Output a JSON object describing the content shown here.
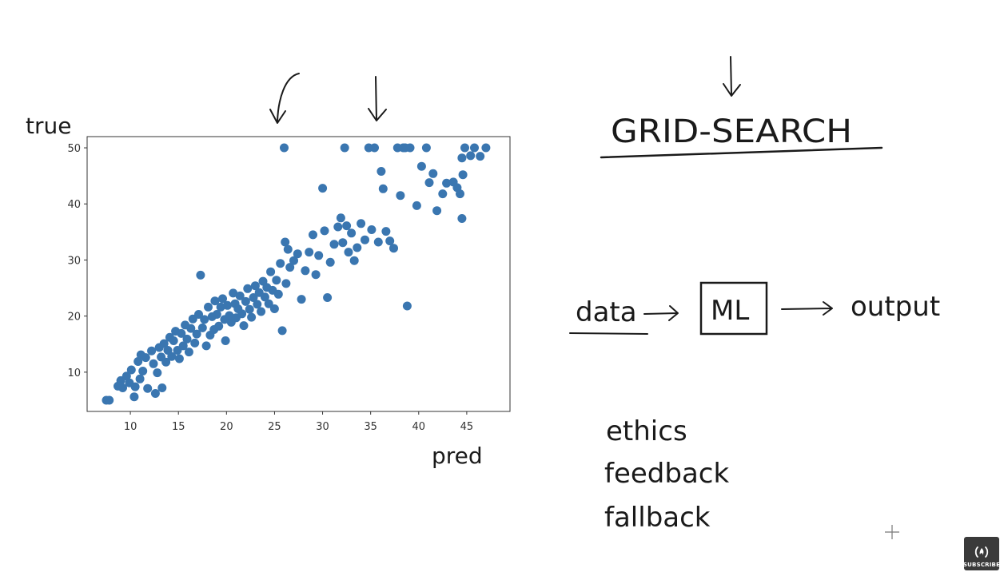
{
  "chart_data": {
    "type": "scatter",
    "title": "",
    "xlabel": "pred",
    "ylabel": "true",
    "xlim": [
      5.5,
      49.5
    ],
    "ylim": [
      3,
      52
    ],
    "xticks": [
      10,
      15,
      20,
      25,
      30,
      35,
      40,
      45
    ],
    "yticks": [
      10,
      20,
      30,
      40,
      50
    ],
    "grid": false,
    "marker_color": "#3a76b0",
    "points": [
      [
        7.5,
        5
      ],
      [
        7.8,
        5
      ],
      [
        8.7,
        7.5
      ],
      [
        9.0,
        8.5
      ],
      [
        9.2,
        7.2
      ],
      [
        9.6,
        9.3
      ],
      [
        9.9,
        8.1
      ],
      [
        10.1,
        10.4
      ],
      [
        10.4,
        5.6
      ],
      [
        10.5,
        7.4
      ],
      [
        10.8,
        11.9
      ],
      [
        11.0,
        8.8
      ],
      [
        11.1,
        13.1
      ],
      [
        11.3,
        10.2
      ],
      [
        11.6,
        12.6
      ],
      [
        11.8,
        7.1
      ],
      [
        12.2,
        13.8
      ],
      [
        12.4,
        11.5
      ],
      [
        12.6,
        6.2
      ],
      [
        12.8,
        9.9
      ],
      [
        13.0,
        14.4
      ],
      [
        13.2,
        12.7
      ],
      [
        13.3,
        7.2
      ],
      [
        13.5,
        15.1
      ],
      [
        13.7,
        11.8
      ],
      [
        13.9,
        13.9
      ],
      [
        14.1,
        16.2
      ],
      [
        14.3,
        12.8
      ],
      [
        14.5,
        15.6
      ],
      [
        14.7,
        17.3
      ],
      [
        14.9,
        13.9
      ],
      [
        15.1,
        12.4
      ],
      [
        15.3,
        16.9
      ],
      [
        15.5,
        14.7
      ],
      [
        15.7,
        18.4
      ],
      [
        15.9,
        15.9
      ],
      [
        16.1,
        13.6
      ],
      [
        16.3,
        17.8
      ],
      [
        16.5,
        19.5
      ],
      [
        16.7,
        15.2
      ],
      [
        16.9,
        16.8
      ],
      [
        17.1,
        20.3
      ],
      [
        17.3,
        27.3
      ],
      [
        17.5,
        17.9
      ],
      [
        17.7,
        19.4
      ],
      [
        17.9,
        14.7
      ],
      [
        18.1,
        21.6
      ],
      [
        18.3,
        16.6
      ],
      [
        18.5,
        19.9
      ],
      [
        18.7,
        17.6
      ],
      [
        18.8,
        22.7
      ],
      [
        19.0,
        20.3
      ],
      [
        19.2,
        18.2
      ],
      [
        19.4,
        21.6
      ],
      [
        19.6,
        23.1
      ],
      [
        19.8,
        19.4
      ],
      [
        19.9,
        15.6
      ],
      [
        20.1,
        21.9
      ],
      [
        20.3,
        20.1
      ],
      [
        20.5,
        18.9
      ],
      [
        20.7,
        24.1
      ],
      [
        20.9,
        22.2
      ],
      [
        21.0,
        19.7
      ],
      [
        21.2,
        21.3
      ],
      [
        21.4,
        23.6
      ],
      [
        21.6,
        20.4
      ],
      [
        21.8,
        18.3
      ],
      [
        22.0,
        22.6
      ],
      [
        22.2,
        24.9
      ],
      [
        22.4,
        21.2
      ],
      [
        22.6,
        19.8
      ],
      [
        22.8,
        23.3
      ],
      [
        23.0,
        25.4
      ],
      [
        23.2,
        22.1
      ],
      [
        23.4,
        24.2
      ],
      [
        23.6,
        20.8
      ],
      [
        23.8,
        26.2
      ],
      [
        24.0,
        23.4
      ],
      [
        24.2,
        25.1
      ],
      [
        24.4,
        22.2
      ],
      [
        24.6,
        27.9
      ],
      [
        24.8,
        24.6
      ],
      [
        25.0,
        21.3
      ],
      [
        25.2,
        26.4
      ],
      [
        25.4,
        23.9
      ],
      [
        25.6,
        29.4
      ],
      [
        25.8,
        17.4
      ],
      [
        26.0,
        50
      ],
      [
        26.1,
        33.2
      ],
      [
        26.2,
        25.8
      ],
      [
        26.4,
        31.9
      ],
      [
        26.6,
        28.7
      ],
      [
        27.0,
        29.9
      ],
      [
        27.4,
        31.1
      ],
      [
        27.8,
        23.0
      ],
      [
        28.2,
        28.1
      ],
      [
        28.6,
        31.4
      ],
      [
        29.0,
        34.5
      ],
      [
        29.3,
        27.4
      ],
      [
        29.6,
        30.8
      ],
      [
        30.0,
        42.8
      ],
      [
        30.2,
        35.2
      ],
      [
        30.5,
        23.3
      ],
      [
        30.8,
        29.6
      ],
      [
        31.2,
        32.8
      ],
      [
        31.6,
        35.9
      ],
      [
        31.9,
        37.5
      ],
      [
        32.1,
        33.1
      ],
      [
        32.3,
        50
      ],
      [
        32.5,
        36.1
      ],
      [
        32.7,
        31.4
      ],
      [
        33.0,
        34.8
      ],
      [
        33.3,
        29.9
      ],
      [
        33.6,
        32.2
      ],
      [
        34.0,
        36.5
      ],
      [
        34.4,
        33.6
      ],
      [
        34.8,
        50
      ],
      [
        35.1,
        35.4
      ],
      [
        35.4,
        50
      ],
      [
        35.8,
        33.2
      ],
      [
        36.1,
        45.8
      ],
      [
        36.3,
        42.7
      ],
      [
        36.6,
        35.1
      ],
      [
        37.0,
        33.4
      ],
      [
        37.4,
        32.1
      ],
      [
        37.8,
        50
      ],
      [
        38.1,
        41.5
      ],
      [
        38.4,
        50
      ],
      [
        38.6,
        50
      ],
      [
        38.8,
        21.8
      ],
      [
        39.1,
        50
      ],
      [
        39.8,
        39.7
      ],
      [
        40.3,
        46.7
      ],
      [
        40.8,
        50
      ],
      [
        41.1,
        43.8
      ],
      [
        41.5,
        45.4
      ],
      [
        41.9,
        38.8
      ],
      [
        42.5,
        41.8
      ],
      [
        42.9,
        43.7
      ],
      [
        43.6,
        43.9
      ],
      [
        44.0,
        42.9
      ],
      [
        44.3,
        41.8
      ],
      [
        44.5,
        37.4
      ],
      [
        44.5,
        48.2
      ],
      [
        44.6,
        45.2
      ],
      [
        44.8,
        50
      ],
      [
        45.4,
        48.6
      ],
      [
        45.8,
        50
      ],
      [
        46.4,
        48.5
      ],
      [
        47.0,
        50
      ]
    ]
  },
  "annotations": {
    "true_label": "true",
    "pred_label": "pred",
    "grid_search": "GRID-SEARCH",
    "flow": {
      "input": "data",
      "model": "ML",
      "output": "output"
    },
    "topics": [
      "ethics",
      "feedback",
      "fallback"
    ]
  },
  "badge": {
    "label": "SUBSCRIBE",
    "icon": "freecodecamp-flame-icon"
  }
}
